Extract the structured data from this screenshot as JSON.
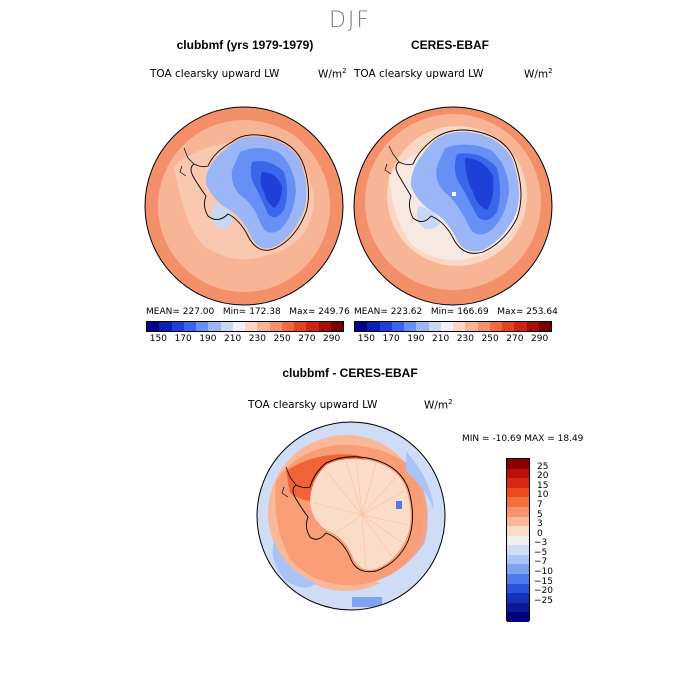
{
  "season": "DJF",
  "panels": [
    {
      "title": "clubbmf (yrs 1979-1979)",
      "variable": "TOA clearsky upward LW",
      "units_base": "W/m",
      "units_exp": "2",
      "stats": {
        "mean": "MEAN= 227.00",
        "min": "Min= 172.38",
        "max": "Max= 249.76"
      }
    },
    {
      "title": "CERES-EBAF",
      "variable": "TOA clearsky upward LW",
      "units_base": "W/m",
      "units_exp": "2",
      "stats": {
        "mean": "MEAN= 223.62",
        "min": "Min= 166.69",
        "max": "Max= 253.64"
      }
    },
    {
      "title": "clubbmf - CERES-EBAF",
      "variable": "TOA clearsky upward LW",
      "units_base": "W/m",
      "units_exp": "2",
      "stats": {
        "minmax": "MIN = -10.69 MAX =  18.49"
      }
    }
  ],
  "chart_data": [
    {
      "type": "heatmap",
      "projection": "south-polar stereographic",
      "title": "clubbmf (yrs 1979-1979)",
      "variable": "TOA clearsky upward LW",
      "units": "W/m^2",
      "mean": 227.0,
      "min": 172.38,
      "max": 249.76,
      "colorbar_levels": [
        150,
        170,
        190,
        210,
        230,
        250,
        270,
        290
      ],
      "colorbar_colors": [
        "#00008b",
        "#0a1fb0",
        "#1e3fd8",
        "#3a66ec",
        "#6690f5",
        "#9ab6f6",
        "#c8d8f4",
        "#f5f0f0",
        "#fbd6c2",
        "#f8b596",
        "#f3906a",
        "#ee6a44",
        "#e34423",
        "#cf2311",
        "#a3120a",
        "#7a0000"
      ]
    },
    {
      "type": "heatmap",
      "projection": "south-polar stereographic",
      "title": "CERES-EBAF",
      "variable": "TOA clearsky upward LW",
      "units": "W/m^2",
      "mean": 223.62,
      "min": 166.69,
      "max": 253.64,
      "colorbar_levels": [
        150,
        170,
        190,
        210,
        230,
        250,
        270,
        290
      ]
    },
    {
      "type": "heatmap",
      "projection": "south-polar stereographic",
      "title": "clubbmf - CERES-EBAF",
      "variable": "TOA clearsky upward LW",
      "units": "W/m^2",
      "min": -10.69,
      "max": 18.49,
      "colorbar_levels": [
        25,
        20,
        15,
        10,
        7,
        5,
        3,
        0,
        -3,
        -5,
        -7,
        -10,
        -15,
        -20,
        -25
      ],
      "colorbar_colors": [
        "#8b0000",
        "#b80f0a",
        "#d8290f",
        "#ec4a1c",
        "#f4703e",
        "#f7946a",
        "#f9b898",
        "#fbdcc8",
        "#f0f0f0",
        "#cfdcf6",
        "#a9c2f7",
        "#7ea2f4",
        "#4f7aee",
        "#2a52dc",
        "#1531b8",
        "#0a1a95",
        "#00007a"
      ]
    }
  ],
  "top_colorbar_labels": [
    "150",
    "170",
    "190",
    "210",
    "230",
    "250",
    "270",
    "290"
  ],
  "diff_colorbar_labels": [
    "25",
    "20",
    "15",
    "10",
    "7",
    "5",
    "3",
    "0",
    "−3",
    "−5",
    "−7",
    "−10",
    "−15",
    "−20",
    "−25"
  ]
}
